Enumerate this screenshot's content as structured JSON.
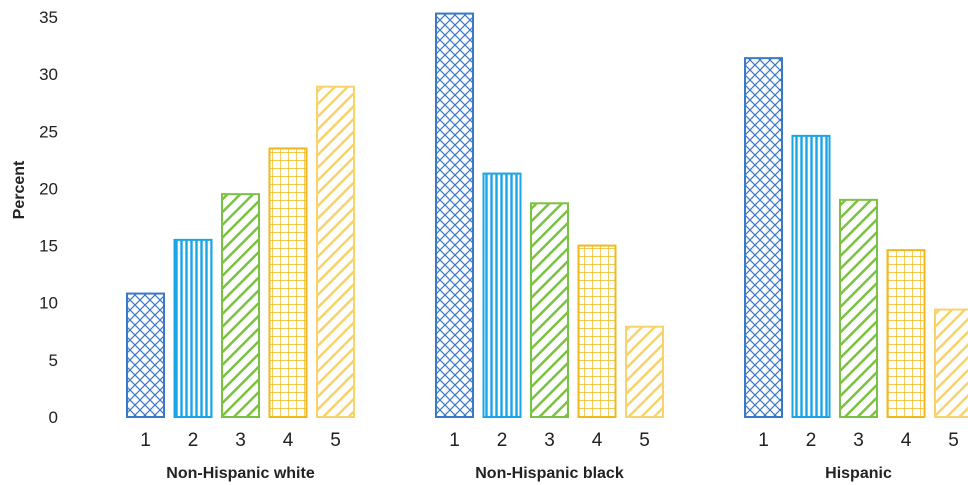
{
  "chart_data": {
    "type": "bar",
    "ylabel": "Percent",
    "ylim": [
      0,
      35
    ],
    "yticks": [
      0,
      5,
      10,
      15,
      20,
      25,
      30,
      35
    ],
    "grid": false,
    "legend": "none",
    "categories": [
      "1",
      "2",
      "3",
      "4",
      "5"
    ],
    "colors": [
      "#3a78c9",
      "#1aa5e6",
      "#7cc242",
      "#f2b81a",
      "#f7d36b"
    ],
    "patterns": [
      "crosshatch",
      "vertical-lines",
      "diagonal-lines",
      "grid",
      "diagonal-lines"
    ],
    "groups": [
      {
        "label": "Non-Hispanic white",
        "values": [
          10.8,
          15.5,
          19.5,
          23.5,
          28.9
        ]
      },
      {
        "label": "Non-Hispanic black",
        "values": [
          35.3,
          21.3,
          18.7,
          15.0,
          7.9
        ]
      },
      {
        "label": "Hispanic",
        "values": [
          31.4,
          24.6,
          19.0,
          14.6,
          9.4
        ]
      }
    ]
  }
}
